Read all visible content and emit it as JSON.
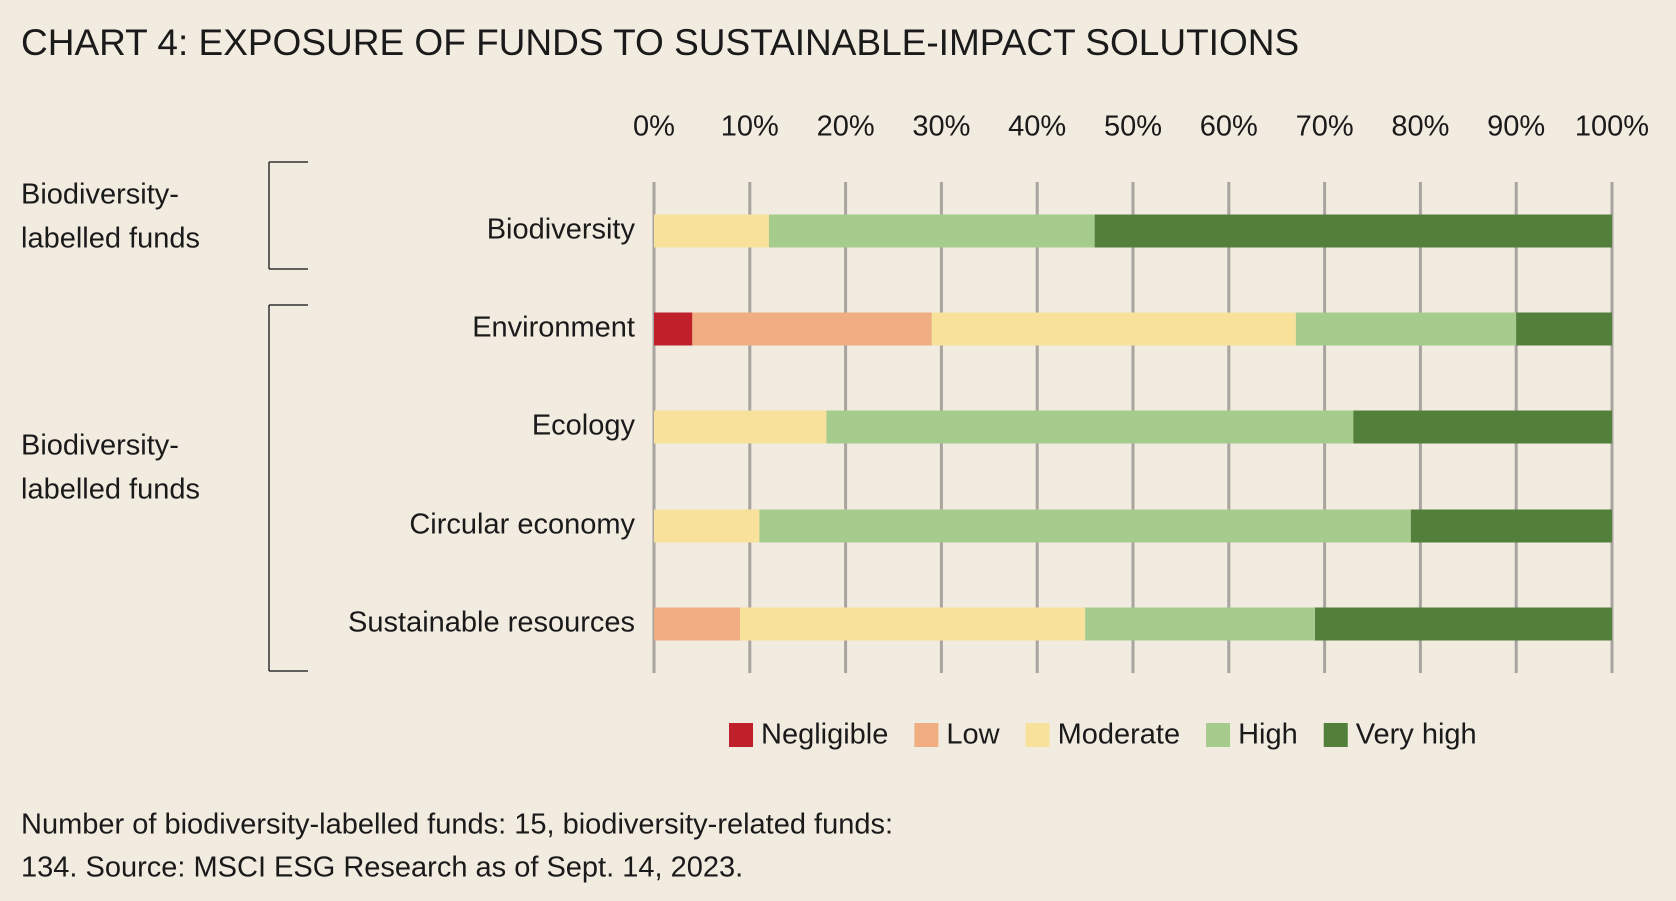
{
  "chart_data": {
    "type": "stacked-bar-horizontal",
    "title": "CHART 4: EXPOSURE OF FUNDS TO SUSTAINABLE-IMPACT SOLUTIONS",
    "categories": [
      "Biodiversity",
      "Environment",
      "Ecology",
      "Circular economy",
      "Sustainable resources"
    ],
    "series": [
      {
        "name": "Negligible",
        "color": "#c0202a",
        "values": [
          0,
          4,
          0,
          0,
          0
        ]
      },
      {
        "name": "Low",
        "color": "#f0ad82",
        "values": [
          0,
          25,
          0,
          0,
          9
        ]
      },
      {
        "name": "Moderate",
        "color": "#f8e19b",
        "values": [
          12,
          38,
          18,
          11,
          36
        ]
      },
      {
        "name": "High",
        "color": "#a5cc8c",
        "values": [
          34,
          23,
          55,
          68,
          24
        ]
      },
      {
        "name": "Very high",
        "color": "#527f3a",
        "values": [
          54,
          10,
          27,
          21,
          31
        ]
      }
    ],
    "xlim": [
      0,
      100
    ],
    "xticks": [
      {
        "value": 0,
        "label": "0%"
      },
      {
        "value": 10,
        "label": "10%"
      },
      {
        "value": 20,
        "label": "20%"
      },
      {
        "value": 30,
        "label": "30%"
      },
      {
        "value": 40,
        "label": "40%"
      },
      {
        "value": 50,
        "label": "50%"
      },
      {
        "value": 60,
        "label": "60%"
      },
      {
        "value": 70,
        "label": "70%"
      },
      {
        "value": 80,
        "label": "80%"
      },
      {
        "value": 90,
        "label": "90%"
      },
      {
        "value": 100,
        "label": "100%"
      }
    ],
    "grid": true,
    "groups": [
      {
        "lines": [
          "Biodiversity-",
          "labelled funds"
        ]
      },
      {
        "lines": [
          "Biodiversity-",
          "labelled funds"
        ]
      }
    ],
    "footnote": [
      "Number of biodiversity-labelled funds: 15, biodiversity-related funds:",
      "134. Source: MSCI ESG Research as of Sept. 14, 2023."
    ]
  }
}
